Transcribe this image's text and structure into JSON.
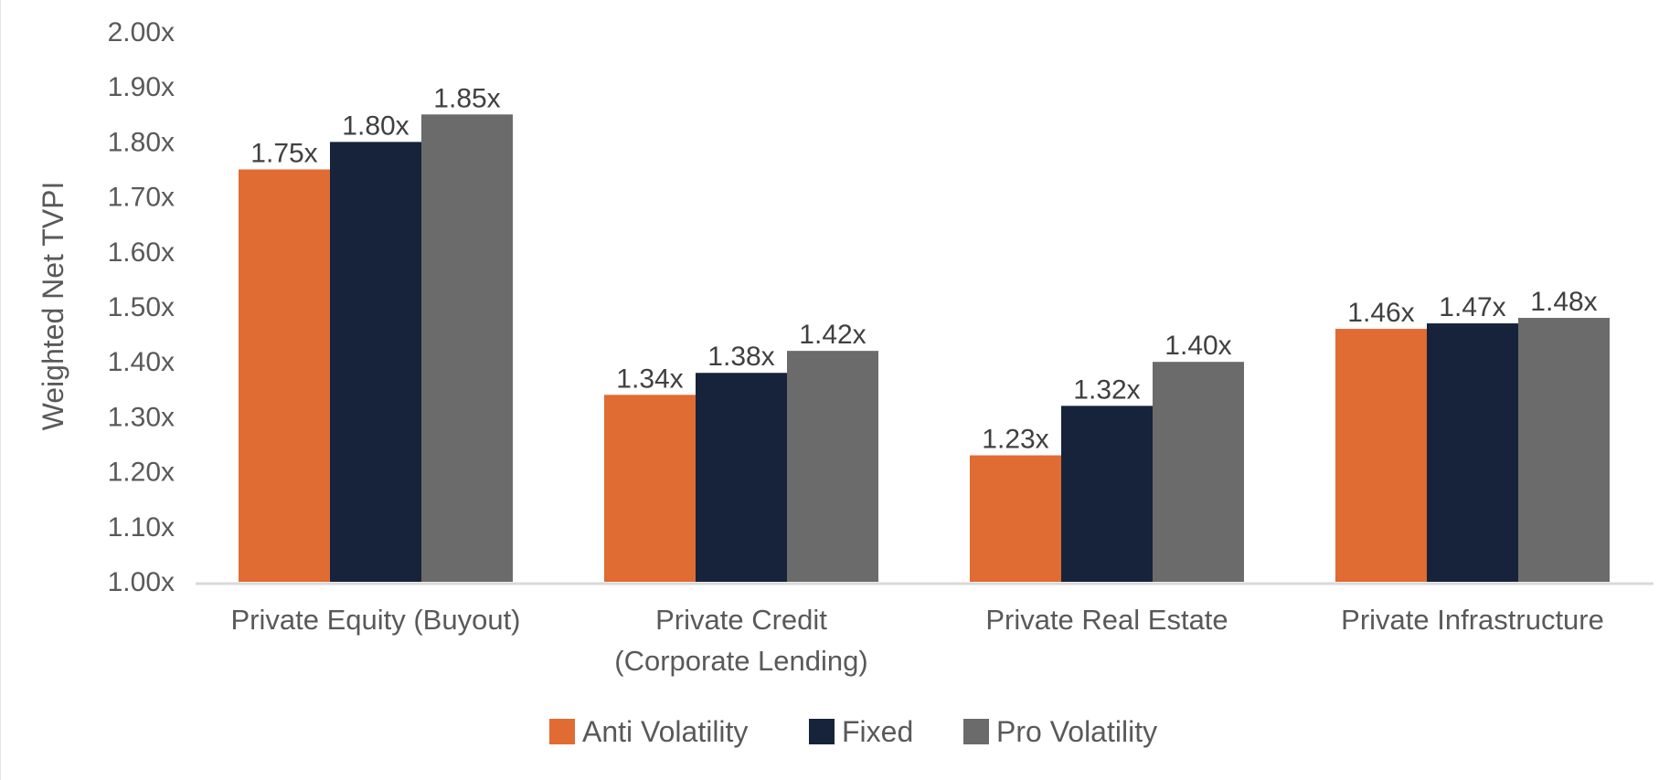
{
  "chart_data": {
    "type": "bar",
    "title": "",
    "xlabel": "",
    "ylabel": "Weighted Net TVPI",
    "ylim": [
      1.0,
      2.0
    ],
    "y_ticks": [
      "1.00x",
      "1.10x",
      "1.20x",
      "1.30x",
      "1.40x",
      "1.50x",
      "1.60x",
      "1.70x",
      "1.80x",
      "1.90x",
      "2.00x"
    ],
    "y_tick_values": [
      1.0,
      1.1,
      1.2,
      1.3,
      1.4,
      1.5,
      1.6,
      1.7,
      1.8,
      1.9,
      2.0
    ],
    "grid": false,
    "legend_position": "bottom",
    "categories": [
      [
        "Private Equity (Buyout)"
      ],
      [
        "Private Credit",
        "(Corporate Lending)"
      ],
      [
        "Private Real Estate"
      ],
      [
        "Private Infrastructure"
      ]
    ],
    "series": [
      {
        "name": "Anti Volatility",
        "color": "#E06B33",
        "values": [
          1.75,
          1.34,
          1.23,
          1.46
        ],
        "labels": [
          "1.75x",
          "1.34x",
          "1.23x",
          "1.46x"
        ]
      },
      {
        "name": "Fixed",
        "color": "#16233A",
        "values": [
          1.8,
          1.38,
          1.32,
          1.47
        ],
        "labels": [
          "1.80x",
          "1.38x",
          "1.32x",
          "1.47x"
        ]
      },
      {
        "name": "Pro Volatility",
        "color": "#6B6B6B",
        "values": [
          1.85,
          1.42,
          1.4,
          1.48
        ],
        "labels": [
          "1.85x",
          "1.42x",
          "1.40x",
          "1.48x"
        ]
      }
    ],
    "baseline_color": "#D9D9D9"
  }
}
